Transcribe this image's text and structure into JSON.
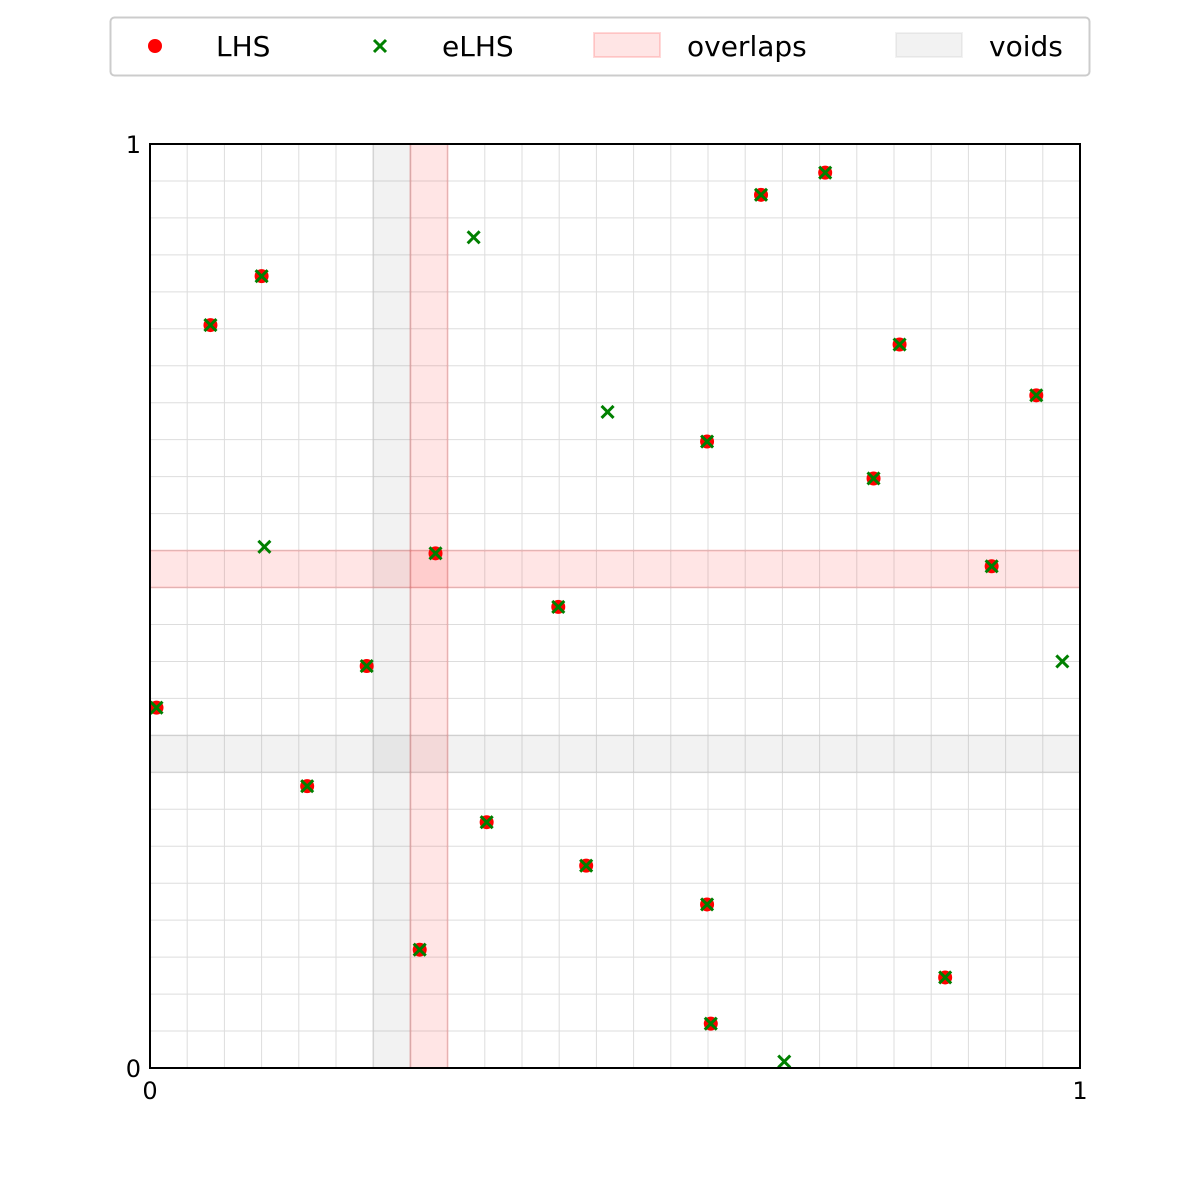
{
  "chart_data": {
    "type": "scatter",
    "xlim": [
      0,
      1
    ],
    "ylim": [
      0,
      1
    ],
    "grid": true,
    "grid_divisions": 25,
    "x_ticks": [
      "0",
      "1"
    ],
    "y_ticks": [
      "0",
      "1"
    ],
    "legend": {
      "placement": "top-center",
      "entries": [
        {
          "label": "LHS",
          "marker": "dot",
          "color": "#ff0000"
        },
        {
          "label": "eLHS",
          "marker": "x",
          "color": "#008000"
        },
        {
          "label": "overlaps",
          "marker": "patch",
          "color": "#ffcccc"
        },
        {
          "label": "voids",
          "marker": "patch",
          "color": "#cccccc"
        }
      ]
    },
    "series": [
      {
        "name": "LHS",
        "color": "#ff0000",
        "points": [
          [
            0.007,
            0.39
          ],
          [
            0.065,
            0.804
          ],
          [
            0.12,
            0.857
          ],
          [
            0.169,
            0.305
          ],
          [
            0.233,
            0.435
          ],
          [
            0.29,
            0.128
          ],
          [
            0.307,
            0.557
          ],
          [
            0.362,
            0.266
          ],
          [
            0.439,
            0.499
          ],
          [
            0.469,
            0.219
          ],
          [
            0.599,
            0.678
          ],
          [
            0.599,
            0.177
          ],
          [
            0.603,
            0.048
          ],
          [
            0.657,
            0.945
          ],
          [
            0.726,
            0.969
          ],
          [
            0.778,
            0.638
          ],
          [
            0.806,
            0.783
          ],
          [
            0.855,
            0.098
          ],
          [
            0.905,
            0.543
          ],
          [
            0.953,
            0.728
          ]
        ]
      },
      {
        "name": "eLHS",
        "color": "#008000",
        "points": [
          [
            0.007,
            0.39
          ],
          [
            0.065,
            0.804
          ],
          [
            0.12,
            0.857
          ],
          [
            0.169,
            0.305
          ],
          [
            0.233,
            0.435
          ],
          [
            0.29,
            0.128
          ],
          [
            0.307,
            0.557
          ],
          [
            0.362,
            0.266
          ],
          [
            0.439,
            0.499
          ],
          [
            0.469,
            0.219
          ],
          [
            0.599,
            0.678
          ],
          [
            0.599,
            0.177
          ],
          [
            0.603,
            0.048
          ],
          [
            0.657,
            0.945
          ],
          [
            0.726,
            0.969
          ],
          [
            0.778,
            0.638
          ],
          [
            0.806,
            0.783
          ],
          [
            0.855,
            0.098
          ],
          [
            0.905,
            0.543
          ],
          [
            0.953,
            0.728
          ],
          [
            0.123,
            0.564
          ],
          [
            0.348,
            0.899
          ],
          [
            0.492,
            0.71
          ],
          [
            0.682,
            0.007
          ],
          [
            0.981,
            0.44
          ]
        ]
      }
    ],
    "overlaps": [
      {
        "axis": "x",
        "range": [
          0.28,
          0.32
        ]
      },
      {
        "axis": "y",
        "range": [
          0.52,
          0.56
        ]
      }
    ],
    "voids": [
      {
        "axis": "x",
        "range": [
          0.24,
          0.28
        ]
      },
      {
        "axis": "y",
        "range": [
          0.32,
          0.36
        ]
      }
    ]
  }
}
